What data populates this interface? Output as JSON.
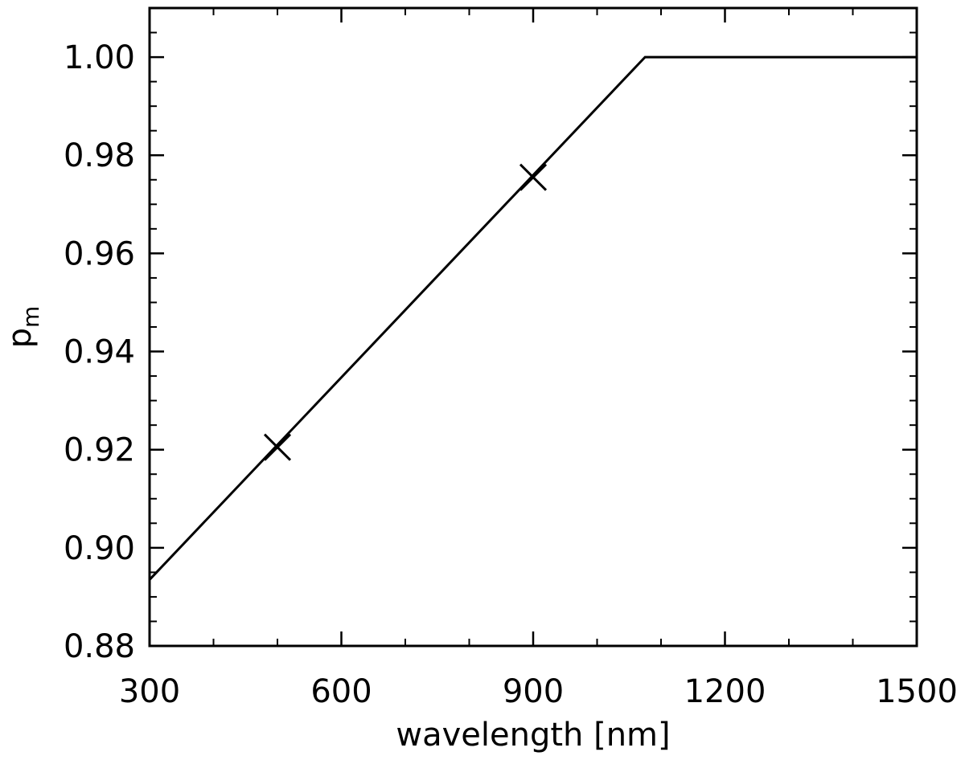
{
  "chart_data": {
    "type": "line",
    "title": "",
    "xlabel": "wavelength [nm]",
    "ylabel": "p",
    "ylabel_subscript": "m",
    "xlim": [
      300,
      1500
    ],
    "ylim": [
      0.88,
      1.01
    ],
    "x_ticks": [
      300,
      600,
      900,
      1200,
      1500
    ],
    "x_tick_labels": [
      "300",
      "600",
      "900",
      "1200",
      "1500"
    ],
    "x_minor_step": 100,
    "y_ticks": [
      0.88,
      0.9,
      0.92,
      0.94,
      0.96,
      0.98,
      1.0
    ],
    "y_tick_labels": [
      "0.88",
      "0.90",
      "0.92",
      "0.94",
      "0.96",
      "0.98",
      "1.00"
    ],
    "y_minor_step": 0.005,
    "grid": false,
    "series": [
      {
        "style": "line",
        "x": [
          300,
          1075,
          1500
        ],
        "y": [
          0.8935,
          1.0,
          1.0
        ],
        "color": "#000000"
      },
      {
        "style": "x-marker",
        "x": [
          500,
          900
        ],
        "y": [
          0.9205,
          0.9755
        ],
        "color": "#000000"
      }
    ]
  }
}
